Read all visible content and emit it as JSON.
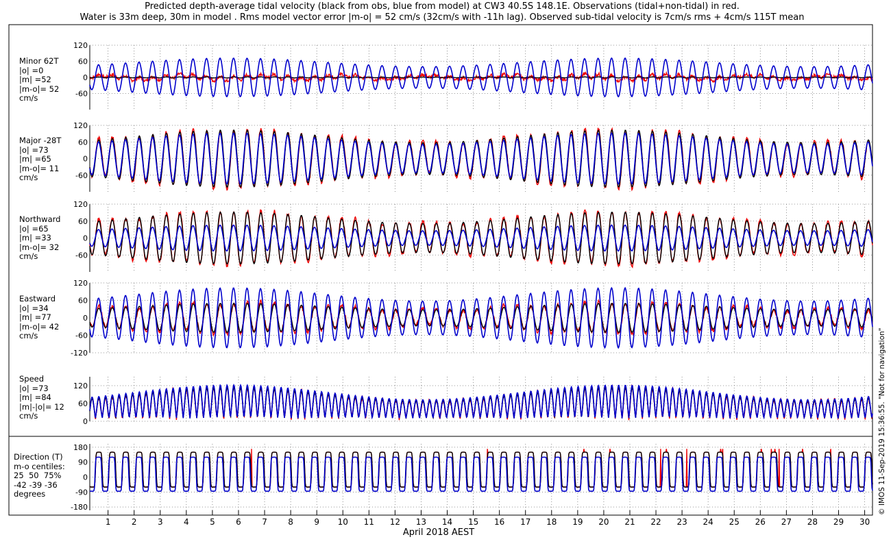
{
  "title_lines": [
    "Predicted depth-average tidal velocity (black from obs, blue from model) at CW3 40.5S 148.1E. Observations (tidal+non-tidal) in red.",
    "Water is 33m deep, 30m in model . Rms model vector error |m-o| = 52 cm/s (32cm/s with -11h lag). Observed sub-tidal velocity is 7cm/s rms + 4cm/s 115T mean"
  ],
  "watermark": "© IMOS 11-Sep-2019 15:36:55.  \"Not for navigation\"",
  "colors": {
    "obs_tidal": "#000000",
    "model": "#0000cc",
    "observed": "#ee0000",
    "grid": "#777777"
  },
  "panel_labels": [
    [
      "Minor 62T",
      "|o| =0",
      "|m| =52",
      "|m-o|= 52",
      "cm/s"
    ],
    [
      "Major -28T",
      "|o| =73",
      "|m| =65",
      "|m-o|= 11",
      "cm/s"
    ],
    [
      "Northward",
      "|o| =65",
      "|m| =33",
      "|m-o|= 32",
      "cm/s"
    ],
    [
      "Eastward",
      "|o| =34",
      "|m| =77",
      "|m-o|= 42",
      "cm/s"
    ],
    [
      "Speed",
      "|o| =73",
      "|m| =84",
      "|m|-|o|= 12",
      "cm/s"
    ],
    [
      "Direction (T)",
      "m-o centiles:",
      "25  50  75%",
      "-42 -39 -36",
      "degrees"
    ]
  ],
  "chart_data": {
    "type": "line",
    "xlabel": "April 2018 AEST",
    "x_ticks": [
      "1",
      "2",
      "3",
      "4",
      "5",
      "6",
      "7",
      "8",
      "9",
      "10",
      "11",
      "12",
      "13",
      "14",
      "15",
      "16",
      "17",
      "18",
      "19",
      "20",
      "21",
      "22",
      "23",
      "24",
      "25",
      "26",
      "27",
      "28",
      "29",
      "30"
    ],
    "xlim": [
      0.3,
      30.3
    ],
    "tide_period_days": 0.5175,
    "panels": [
      {
        "name": "Minor 62T",
        "yticks": [
          "120",
          "60",
          "0",
          "-60"
        ],
        "ylim": [
          -120,
          120
        ],
        "series": [
          {
            "role": "obs_tidal",
            "amplitude": 2
          },
          {
            "role": "model",
            "amplitude": 72
          },
          {
            "role": "observed",
            "amplitude": 8
          }
        ]
      },
      {
        "name": "Major -28T",
        "yticks": [
          "120",
          "60",
          "0",
          "-60"
        ],
        "ylim": [
          -120,
          120
        ],
        "series": [
          {
            "role": "obs_tidal",
            "amplitude": 103
          },
          {
            "role": "model",
            "amplitude": 92
          },
          {
            "role": "observed",
            "amplitude": 105
          }
        ]
      },
      {
        "name": "Northward",
        "yticks": [
          "120",
          "60",
          "0",
          "-60"
        ],
        "ylim": [
          -120,
          120
        ],
        "series": [
          {
            "role": "obs_tidal",
            "amplitude": 92
          },
          {
            "role": "model",
            "amplitude": 46
          },
          {
            "role": "observed",
            "amplitude": 95
          }
        ]
      },
      {
        "name": "Eastward",
        "yticks": [
          "120",
          "60",
          "0",
          "-60",
          "-120"
        ],
        "ylim": [
          -120,
          120
        ],
        "series": [
          {
            "role": "obs_tidal",
            "amplitude": 50
          },
          {
            "role": "model",
            "amplitude": 103
          },
          {
            "role": "observed",
            "amplitude": 52
          }
        ]
      },
      {
        "name": "Speed",
        "yticks": [
          "120",
          "60",
          "0"
        ],
        "ylim": [
          0,
          150
        ],
        "series": [
          {
            "role": "obs_tidal",
            "amplitude": 103
          },
          {
            "role": "model",
            "amplitude": 112
          },
          {
            "role": "observed",
            "amplitude": 105
          }
        ]
      },
      {
        "name": "Direction (T)",
        "yticks": [
          "180",
          "90",
          "0",
          "-90",
          "-180"
        ],
        "ylim": [
          -200,
          200
        ],
        "series": [
          {
            "role": "obs_tidal",
            "levels": [
              150,
              -60
            ]
          },
          {
            "role": "model",
            "levels": [
              120,
              -85
            ]
          },
          {
            "role": "observed",
            "levels": [
              150,
              -60
            ]
          }
        ]
      }
    ]
  }
}
